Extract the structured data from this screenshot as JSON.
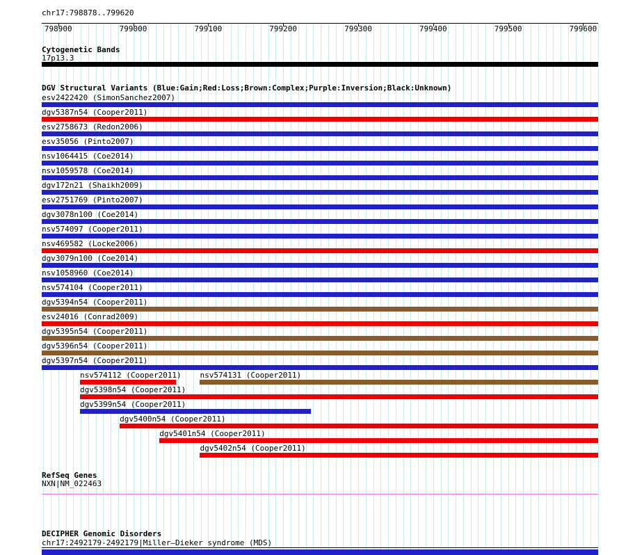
{
  "region_title": "chr17:798878..799620",
  "sections": {
    "cytobands_title": "Cytogenetic Bands",
    "cytoband_label": "17p13.3",
    "dgv_title": "DGV Structural Variants (Blue:Gain;Red:Loss;Brown:Complex;Purple:Inversion;Black:Unknown)",
    "refseq_title": "RefSeq Genes",
    "refseq_gene_label": "NXN|NM_022463",
    "decipher_title": "DECIPHER Genomic Disorders",
    "decipher_entry": "chr17:2492179-2492179|Miller–Dieker syndrome (MDS)"
  },
  "chart_data": {
    "type": "genome-tracks",
    "axis": {
      "chrom": "chr17",
      "start": 798878,
      "end": 799620,
      "major_ticks": [
        798900,
        799000,
        799100,
        799200,
        799300,
        799400,
        799500,
        799600
      ],
      "minor_step": 10
    },
    "color_legend": {
      "gain": "Blue",
      "loss": "Red",
      "complex": "Brown",
      "inversion": "Purple",
      "unknown": "Black"
    },
    "colors": {
      "grid": "#c6ecec",
      "axis": "#000000",
      "gain": "#2121cc",
      "loss": "#ee0000",
      "complex": "#8b5a2b",
      "inversion": "#880088",
      "unknown": "#000000",
      "gene": "#dd6fdd",
      "decipher": "#2121cc"
    },
    "cytoband": {
      "name": "17p13.3",
      "start": 798878,
      "end": 799620
    },
    "dgv_rows": [
      [
        {
          "label": "esv2422420 (SimonSanchez2007)",
          "type": "gain",
          "start": 798878,
          "end": 799620
        }
      ],
      [
        {
          "label": "dgv5387n54 (Cooper2011)",
          "type": "loss",
          "start": 798878,
          "end": 799620
        }
      ],
      [
        {
          "label": "esv2758673 (Redon2006)",
          "type": "gain",
          "start": 798878,
          "end": 799620
        }
      ],
      [
        {
          "label": "esv35056 (Pinto2007)",
          "type": "gain",
          "start": 798878,
          "end": 799620
        }
      ],
      [
        {
          "label": "nsv1064415 (Coe2014)",
          "type": "gain",
          "start": 798878,
          "end": 799620
        }
      ],
      [
        {
          "label": "nsv1059578 (Coe2014)",
          "type": "gain",
          "start": 798878,
          "end": 799620
        }
      ],
      [
        {
          "label": "dgv172n21 (Shaikh2009)",
          "type": "gain",
          "start": 798878,
          "end": 799620
        }
      ],
      [
        {
          "label": "esv2751769 (Pinto2007)",
          "type": "gain",
          "start": 798878,
          "end": 799620
        }
      ],
      [
        {
          "label": "dgv3078n100 (Coe2014)",
          "type": "gain",
          "start": 798878,
          "end": 799620
        }
      ],
      [
        {
          "label": "nsv574097 (Cooper2011)",
          "type": "gain",
          "start": 798878,
          "end": 799620
        }
      ],
      [
        {
          "label": "nsv469582 (Locke2006)",
          "type": "loss",
          "start": 798878,
          "end": 799620
        }
      ],
      [
        {
          "label": "dgv3079n100 (Coe2014)",
          "type": "gain",
          "start": 798878,
          "end": 799620
        }
      ],
      [
        {
          "label": "nsv1058960 (Coe2014)",
          "type": "gain",
          "start": 798878,
          "end": 799620
        }
      ],
      [
        {
          "label": "nsv574104 (Cooper2011)",
          "type": "gain",
          "start": 798878,
          "end": 799620
        }
      ],
      [
        {
          "label": "dgv5394n54 (Cooper2011)",
          "type": "complex",
          "start": 798878,
          "end": 799620
        }
      ],
      [
        {
          "label": "esv24016 (Conrad2009)",
          "type": "loss",
          "start": 798878,
          "end": 799620
        }
      ],
      [
        {
          "label": "dgv5395n54 (Cooper2011)",
          "type": "complex",
          "start": 798878,
          "end": 799620
        }
      ],
      [
        {
          "label": "dgv5396n54 (Cooper2011)",
          "type": "complex",
          "start": 798878,
          "end": 799620
        }
      ],
      [
        {
          "label": "dgv5397n54 (Cooper2011)",
          "type": "gain",
          "start": 798878,
          "end": 799620
        }
      ],
      [
        {
          "label": "nsv574112 (Cooper2011)",
          "type": "loss",
          "start": 798929,
          "end": 799057
        },
        {
          "label": "nsv574131 (Cooper2011)",
          "type": "complex",
          "start": 799089,
          "end": 799620
        }
      ],
      [
        {
          "label": "dgv5398n54 (Cooper2011)",
          "type": "loss",
          "start": 798929,
          "end": 799620
        }
      ],
      [
        {
          "label": "dgv5399n54 (Cooper2011)",
          "type": "gain",
          "start": 798929,
          "end": 799237
        }
      ],
      [
        {
          "label": "dgv5400n54 (Cooper2011)",
          "type": "loss",
          "start": 798982,
          "end": 799620
        }
      ],
      [
        {
          "label": "dgv5401n54 (Cooper2011)",
          "type": "loss",
          "start": 799035,
          "end": 799620
        }
      ],
      [
        {
          "label": "dgv5402n54 (Cooper2011)",
          "type": "loss",
          "start": 799089,
          "end": 799620
        }
      ]
    ],
    "refseq": {
      "name": "NXN|NM_022463",
      "start": 798878,
      "end": 799620
    },
    "decipher": {
      "name": "chr17:2492179-2492179|Miller–Dieker syndrome (MDS)",
      "start": 798878,
      "end": 799620
    }
  }
}
